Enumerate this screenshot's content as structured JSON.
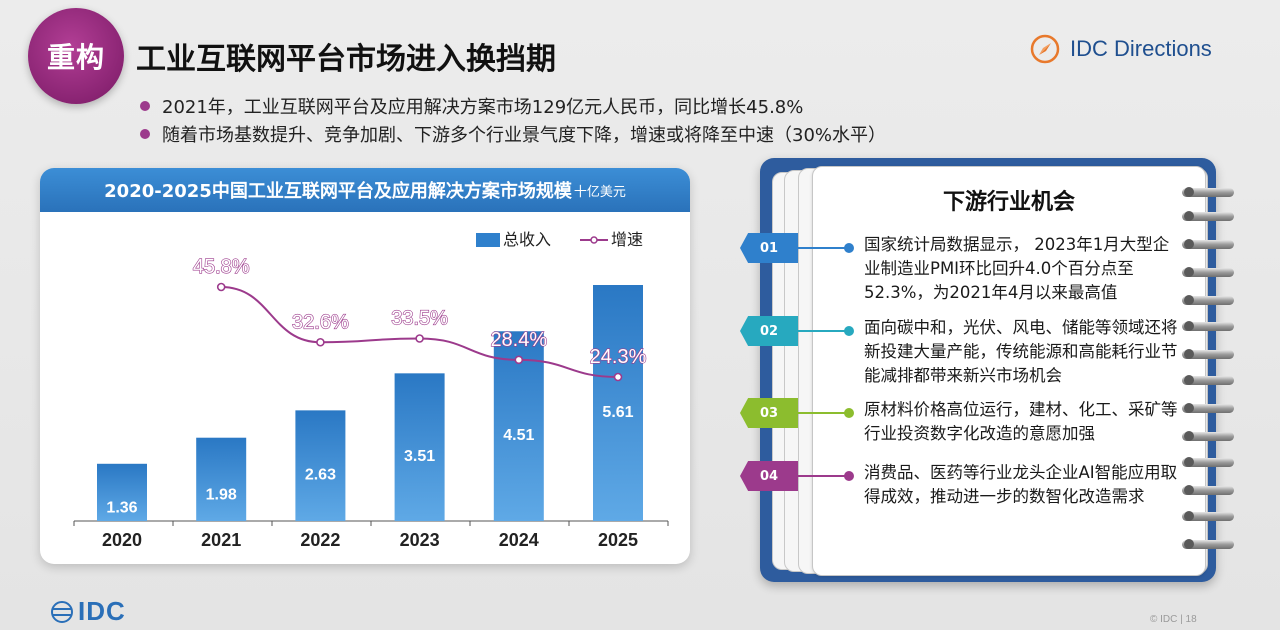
{
  "header": {
    "badge": "重构",
    "title": "工业互联网平台市场进入换挡期",
    "logo_text": "IDC Directions"
  },
  "bullets": [
    "2021年，工业互联网平台及应用解决方案市场129亿元人民币，同比增长45.8%",
    "随着市场基数提升、竞争加剧、下游多个行业景气度下降，增速或将降至中速（30%水平）"
  ],
  "chart_card": {
    "title": "2020-2025中国工业互联网平台及应用解决方案市场规模",
    "unit": "十亿美元"
  },
  "chart_data": {
    "type": "bar",
    "categories": [
      "2020",
      "2021",
      "2022",
      "2023",
      "2024",
      "2025"
    ],
    "series": [
      {
        "name": "总收入",
        "type": "bar",
        "values": [
          1.36,
          1.98,
          2.63,
          3.51,
          4.51,
          5.61
        ],
        "color": "#2f80cc"
      },
      {
        "name": "增速",
        "type": "line",
        "values": [
          null,
          45.8,
          32.6,
          33.5,
          28.4,
          24.3
        ],
        "labels": [
          "",
          "45.8%",
          "32.6%",
          "33.5%",
          "28.4%",
          "24.3%"
        ],
        "color": "#9c3a8c"
      }
    ],
    "legend": "top-right",
    "title": "2020-2025中国工业互联网平台及应用解决方案市场规模"
  },
  "notebook": {
    "title": "下游行业机会",
    "items": [
      {
        "num": "01",
        "color": "#2f80cc",
        "text": "国家统计局数据显示， 2023年1月大型企业制造业PMI环比回升4.0个百分点至52.3%，为2021年4月以来最高值"
      },
      {
        "num": "02",
        "color": "#27a9bf",
        "text": "面向碳中和，光伏、风电、储能等领域还将新投建大量产能，传统能源和高能耗行业节能减排都带来新兴市场机会"
      },
      {
        "num": "03",
        "color": "#8cbd2e",
        "text": "原材料价格高位运行，建材、化工、采矿等行业投资数字化改造的意愿加强"
      },
      {
        "num": "04",
        "color": "#9c3a8c",
        "text": "消费品、医药等行业龙头企业AI智能应用取得成效，推动进一步的数智化改造需求"
      }
    ]
  },
  "footer": {
    "logo": "IDC",
    "page": "© IDC |   18"
  }
}
